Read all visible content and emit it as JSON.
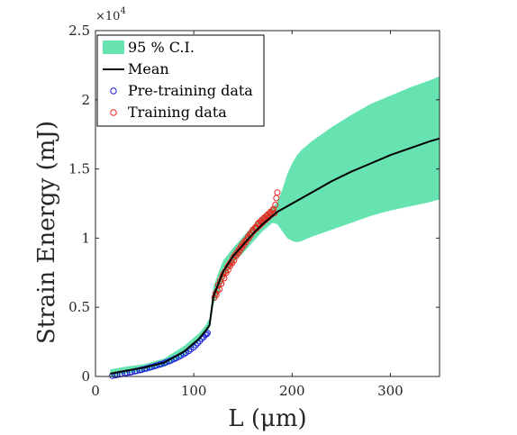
{
  "chart_data": {
    "type": "line",
    "xlabel": "L (μm)",
    "ylabel": "Strain Energy (mJ)",
    "y_multiplier": "×10",
    "y_multiplier_exp": "4",
    "xlim": [
      0,
      350
    ],
    "ylim": [
      0,
      25000
    ],
    "x_ticks": [
      0,
      100,
      200,
      300
    ],
    "x_tick_labels": [
      "0",
      "100",
      "200",
      "300"
    ],
    "y_ticks": [
      0,
      5000,
      10000,
      15000,
      20000,
      25000
    ],
    "y_tick_labels": [
      "0",
      "0.5",
      "1",
      "1.5",
      "2",
      "2.5"
    ],
    "grid": false,
    "legend_position": "top-left",
    "colors": {
      "ci_fill": "#66e3b0",
      "mean": "#000000",
      "pretraining": "#1f1fd6",
      "training": "#e8261f"
    },
    "legend": [
      "95 % C.I.",
      "Mean",
      "Pre-training data",
      "Training data"
    ],
    "series": [
      {
        "name": "95 % C.I.",
        "kind": "band",
        "x": [
          15,
          30,
          50,
          70,
          90,
          105,
          112,
          116,
          120,
          125,
          130,
          140,
          150,
          160,
          170,
          180,
          185,
          190,
          195,
          200,
          205,
          210,
          220,
          240,
          260,
          280,
          300,
          320,
          340,
          350
        ],
        "lower": [
          0,
          200,
          400,
          700,
          1500,
          2500,
          3100,
          3500,
          5200,
          6000,
          7000,
          8200,
          8900,
          9700,
          10500,
          11100,
          11000,
          10500,
          10000,
          9800,
          9700,
          9800,
          10100,
          10600,
          11100,
          11600,
          12000,
          12300,
          12600,
          12800
        ],
        "upper": [
          500,
          700,
          900,
          1300,
          2200,
          3100,
          3700,
          4200,
          6500,
          7500,
          8400,
          9300,
          10100,
          10900,
          11600,
          12200,
          12600,
          13500,
          14600,
          15400,
          16000,
          16400,
          17000,
          18000,
          18900,
          19700,
          20300,
          20900,
          21400,
          21700
        ]
      },
      {
        "name": "Mean",
        "kind": "line",
        "x": [
          15,
          30,
          50,
          70,
          90,
          105,
          112,
          116,
          120,
          125,
          130,
          140,
          150,
          160,
          170,
          180,
          185,
          200,
          220,
          240,
          260,
          280,
          300,
          320,
          340,
          350
        ],
        "y": [
          200,
          400,
          650,
          1000,
          1800,
          2700,
          3300,
          3700,
          5800,
          6700,
          7600,
          8700,
          9500,
          10300,
          11000,
          11600,
          11900,
          12500,
          13300,
          14100,
          14800,
          15400,
          16000,
          16500,
          17000,
          17200
        ]
      },
      {
        "name": "Pre-training data",
        "kind": "scatter",
        "x": [
          17,
          20,
          22,
          25,
          27,
          30,
          32,
          35,
          37,
          40,
          42,
          45,
          47,
          50,
          52,
          55,
          57,
          60,
          62,
          65,
          67,
          70,
          72,
          75,
          77,
          80,
          82,
          85,
          87,
          90,
          92,
          95,
          97,
          100,
          102,
          104,
          106,
          108,
          110,
          112,
          113,
          114
        ],
        "y": [
          50,
          80,
          120,
          150,
          180,
          220,
          250,
          290,
          320,
          370,
          400,
          450,
          490,
          540,
          580,
          640,
          680,
          740,
          790,
          850,
          900,
          970,
          1020,
          1100,
          1160,
          1250,
          1330,
          1420,
          1510,
          1620,
          1720,
          1850,
          1970,
          2100,
          2260,
          2410,
          2550,
          2720,
          2860,
          3000,
          3060,
          3150
        ]
      },
      {
        "name": "Training data",
        "kind": "scatter",
        "x": [
          121,
          122,
          123,
          124,
          125,
          126,
          127,
          128,
          129,
          130,
          131,
          132,
          133,
          134,
          135,
          136,
          137,
          138,
          139,
          140,
          141,
          142,
          143,
          144,
          145,
          146,
          147,
          148,
          149,
          150,
          151,
          152,
          153,
          154,
          155,
          156,
          157,
          158,
          159,
          160,
          161,
          162,
          163,
          164,
          165,
          166,
          167,
          168,
          169,
          170,
          171,
          172,
          173,
          174,
          175,
          176,
          177,
          178,
          179,
          180,
          181,
          182,
          183,
          184,
          185
        ],
        "y": [
          5700,
          6000,
          5900,
          6200,
          6600,
          6300,
          6900,
          6700,
          7200,
          7400,
          7100,
          7600,
          7500,
          7900,
          7700,
          8100,
          8000,
          8300,
          8200,
          8600,
          8400,
          8800,
          8700,
          9000,
          8900,
          9200,
          9100,
          9400,
          9300,
          9600,
          9500,
          9800,
          9700,
          9900,
          10100,
          10000,
          10300,
          10200,
          10400,
          10600,
          10500,
          10700,
          10800,
          10700,
          11000,
          11100,
          10900,
          11200,
          11300,
          11100,
          11400,
          11500,
          11300,
          11600,
          11700,
          11500,
          11800,
          11900,
          11700,
          12000,
          12100,
          11800,
          12400,
          12900,
          13300
        ]
      }
    ]
  }
}
